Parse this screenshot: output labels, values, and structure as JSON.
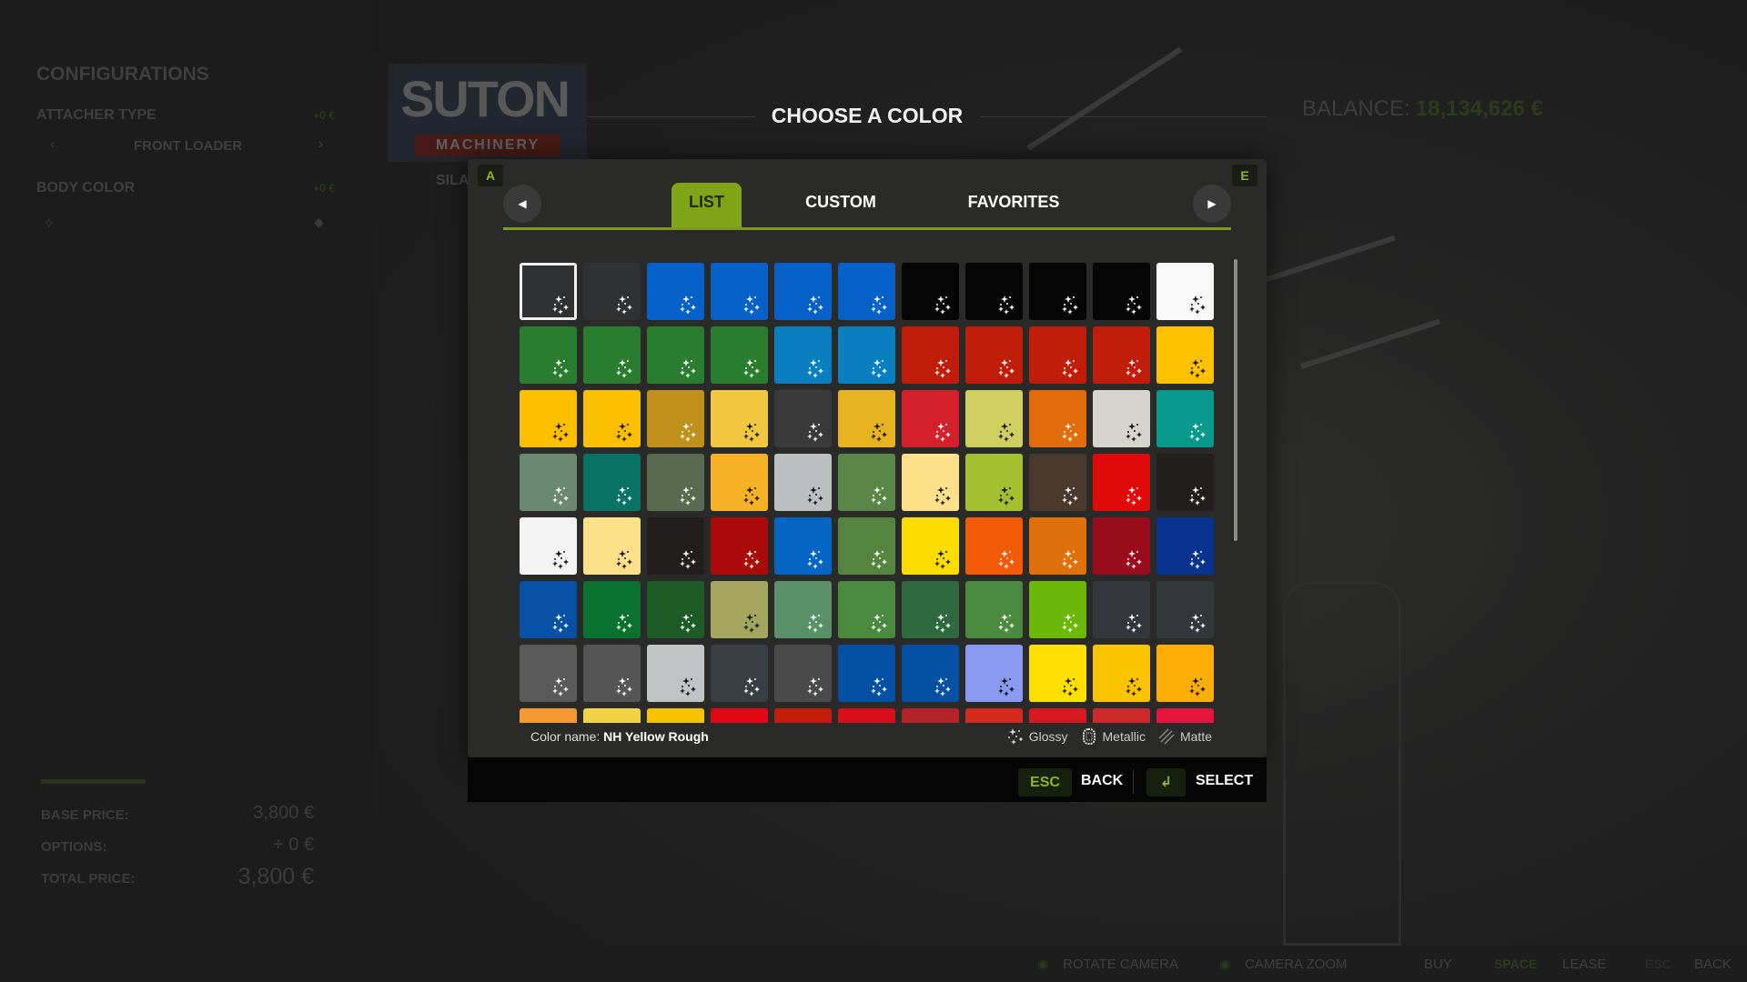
{
  "left_panel": {
    "title": "CONFIGURATIONS",
    "attacher_type": {
      "label": "ATTACHER TYPE",
      "price": "+0 €",
      "value": "FRONT LOADER",
      "prev": "‹",
      "next": "›"
    },
    "body_color": {
      "label": "BODY COLOR",
      "price": "+0 €"
    },
    "prices": {
      "base_label": "BASE PRICE:",
      "base_value": "3,800 €",
      "options_label": "OPTIONS:",
      "options_value": "+ 0 €",
      "total_label": "TOTAL PRICE:",
      "total_value": "3,800 €"
    }
  },
  "brand": {
    "line1": "SUTON",
    "line2": "MACHINERY"
  },
  "category_fragment": "SILA",
  "balance": {
    "label": "BALANCE:",
    "value": "18,134,626 €"
  },
  "dialog": {
    "title": "CHOOSE A COLOR",
    "prev_key": "A",
    "next_key": "E",
    "tabs": [
      {
        "label": "LIST",
        "active": true
      },
      {
        "label": "CUSTOM",
        "active": false
      },
      {
        "label": "FAVORITES",
        "active": false
      }
    ],
    "selected_index": 0,
    "swatches": [
      [
        "#2f3133",
        "#2f3133",
        "#0560c8",
        "#0560c8",
        "#0560c8",
        "#0560c8",
        "#050505",
        "#050505",
        "#050505",
        "#050505",
        "#f8f8f8"
      ],
      [
        "#2a7c2e",
        "#2a7c2e",
        "#2a7c2e",
        "#2a7c2e",
        "#0a7fbf",
        "#0a7fbf",
        "#c01e0a",
        "#c01e0a",
        "#c01e0a",
        "#c01e0a",
        "#fcc200"
      ],
      [
        "#fbbf00",
        "#fbbf00",
        "#c0901a",
        "#f2c840",
        "#3a3a3a",
        "#e8b320",
        "#d3202a",
        "#cfcf60",
        "#e36c0a",
        "#d6d4cc",
        "#079a8c"
      ],
      [
        "#6b8870",
        "#087265",
        "#5a6a4e",
        "#f6b224",
        "#bcbfc0",
        "#5a8648",
        "#fde08a",
        "#a5bf2e",
        "#4a3a2e",
        "#e10a0a",
        "#221e1e"
      ],
      [
        "#f3f3f3",
        "#fde08a",
        "#221e1e",
        "#aa0a0a",
        "#0565c4",
        "#55843f",
        "#fddc00",
        "#f25a05",
        "#df700a",
        "#9a0c1c",
        "#07338f"
      ],
      [
        "#0650a5",
        "#0a7230",
        "#1c5a26",
        "#a4a660",
        "#5a9068",
        "#4a8a3e",
        "#2e6a3e",
        "#4a8a3e",
        "#6ab80a",
        "#33373b",
        "#33373b"
      ],
      [
        "#5a5a5a",
        "#555555",
        "#c0c4c4",
        "#383e44",
        "#4a4a4a",
        "#0450a5",
        "#0450a5",
        "#8a9af0",
        "#fde000",
        "#fbc300",
        "#fcae05"
      ],
      [
        "#f59a30",
        "#f2d245",
        "#f7c200",
        "#e30613",
        "#c41e0a",
        "#d90e1a",
        "#b3232a",
        "#d42a1e",
        "#d71920",
        "#cc2a2a",
        "#e5143a"
      ]
    ],
    "swatch_finish_icon": "glossy-sparkle-icon",
    "color_name_label": "Color name:",
    "color_name_value": "NH Yellow Rough",
    "legend": [
      {
        "icon": "glossy-icon",
        "label": "Glossy"
      },
      {
        "icon": "metallic-icon",
        "label": "Metallic"
      },
      {
        "icon": "matte-icon",
        "label": "Matte"
      }
    ],
    "footer": {
      "back_key": "ESC",
      "back_label": "BACK",
      "select_key_icon": "enter-icon",
      "select_label": "SELECT"
    }
  },
  "bottom_bar": {
    "rotate": "ROTATE CAMERA",
    "zoom": "CAMERA ZOOM",
    "buy": "BUY",
    "lease_key": "SPACE",
    "lease": "LEASE",
    "back_key": "ESC",
    "back": "BACK"
  },
  "colors": {
    "accent": "#7fa418",
    "dialog_bg": "#2a2a29",
    "page_bg": "#1b1b1b"
  }
}
